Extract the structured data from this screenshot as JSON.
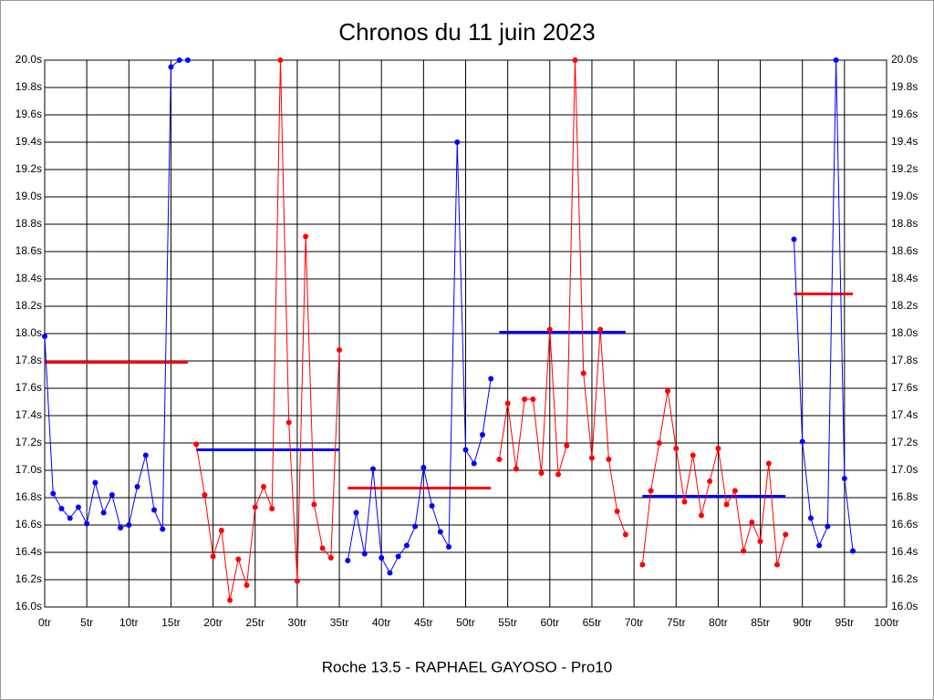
{
  "chart_data": {
    "type": "line",
    "title": "Chronos du 11 juin 2023",
    "xlabel": "Roche 13.5 - RAPHAEL GAYOSO - Pro10",
    "xlim": [
      0,
      100
    ],
    "ylim": [
      16.0,
      20.0
    ],
    "grid": true,
    "xticks": [
      {
        "value": 0,
        "label": "0tr"
      },
      {
        "value": 5,
        "label": "5tr"
      },
      {
        "value": 10,
        "label": "10tr"
      },
      {
        "value": 15,
        "label": "15tr"
      },
      {
        "value": 20,
        "label": "20tr"
      },
      {
        "value": 25,
        "label": "25tr"
      },
      {
        "value": 30,
        "label": "30tr"
      },
      {
        "value": 35,
        "label": "35tr"
      },
      {
        "value": 40,
        "label": "40tr"
      },
      {
        "value": 45,
        "label": "45tr"
      },
      {
        "value": 50,
        "label": "50tr"
      },
      {
        "value": 55,
        "label": "55tr"
      },
      {
        "value": 60,
        "label": "60tr"
      },
      {
        "value": 65,
        "label": "65tr"
      },
      {
        "value": 70,
        "label": "70tr"
      },
      {
        "value": 75,
        "label": "75tr"
      },
      {
        "value": 80,
        "label": "80tr"
      },
      {
        "value": 85,
        "label": "85tr"
      },
      {
        "value": 90,
        "label": "90tr"
      },
      {
        "value": 95,
        "label": "95tr"
      },
      {
        "value": 100,
        "label": "100tr"
      }
    ],
    "yticks": [
      {
        "value": 16.0,
        "label": "16.0s"
      },
      {
        "value": 16.2,
        "label": "16.2s"
      },
      {
        "value": 16.4,
        "label": "16.4s"
      },
      {
        "value": 16.6,
        "label": "16.6s"
      },
      {
        "value": 16.8,
        "label": "16.8s"
      },
      {
        "value": 17.0,
        "label": "17.0s"
      },
      {
        "value": 17.2,
        "label": "17.2s"
      },
      {
        "value": 17.4,
        "label": "17.4s"
      },
      {
        "value": 17.6,
        "label": "17.6s"
      },
      {
        "value": 17.8,
        "label": "17.8s"
      },
      {
        "value": 18.0,
        "label": "18.0s"
      },
      {
        "value": 18.2,
        "label": "18.2s"
      },
      {
        "value": 18.4,
        "label": "18.4s"
      },
      {
        "value": 18.6,
        "label": "18.6s"
      },
      {
        "value": 18.8,
        "label": "18.8s"
      },
      {
        "value": 19.0,
        "label": "19.0s"
      },
      {
        "value": 19.2,
        "label": "19.2s"
      },
      {
        "value": 19.4,
        "label": "19.4s"
      },
      {
        "value": 19.6,
        "label": "19.6s"
      },
      {
        "value": 19.8,
        "label": "19.8s"
      },
      {
        "value": 20.0,
        "label": "20.0s"
      }
    ],
    "series": [
      {
        "color": "#0000ff",
        "x": [
          0,
          1,
          2,
          3,
          4,
          5,
          6,
          7,
          8,
          9,
          10,
          11,
          12,
          13,
          14,
          15,
          16,
          17
        ],
        "values": [
          17.98,
          16.83,
          16.72,
          16.65,
          16.73,
          16.61,
          16.91,
          16.69,
          16.82,
          16.58,
          16.6,
          16.88,
          17.11,
          16.71,
          16.57,
          19.95,
          20.0,
          20.0
        ]
      },
      {
        "color": "#ff0000",
        "x": [
          18,
          19,
          20,
          21,
          22,
          23,
          24,
          25,
          26,
          27,
          28,
          29,
          30,
          31,
          32,
          33,
          34,
          35
        ],
        "values": [
          17.19,
          16.82,
          16.37,
          16.56,
          16.05,
          16.35,
          16.16,
          16.73,
          16.88,
          16.72,
          20.0,
          17.35,
          16.19,
          18.71,
          16.75,
          16.43,
          16.36,
          17.88
        ]
      },
      {
        "color": "#0000ff",
        "x": [
          36,
          37,
          38,
          39,
          40,
          41,
          42,
          43,
          44,
          45,
          46,
          47,
          48,
          49,
          50,
          51,
          52,
          53
        ],
        "values": [
          16.34,
          16.69,
          16.39,
          17.01,
          16.36,
          16.25,
          16.37,
          16.45,
          16.59,
          17.02,
          16.74,
          16.55,
          16.44,
          19.4,
          17.15,
          17.05,
          17.26,
          17.67
        ]
      },
      {
        "color": "#ff0000",
        "x": [
          54,
          55,
          56,
          57,
          58,
          59,
          60,
          61,
          62,
          63,
          64,
          65,
          66,
          67,
          68,
          69
        ],
        "values": [
          17.08,
          17.49,
          17.01,
          17.52,
          17.52,
          16.98,
          18.03,
          16.97,
          17.18,
          20.0,
          17.71,
          17.09,
          18.03,
          17.08,
          16.7,
          16.53
        ]
      },
      {
        "color": "#ff0000",
        "x": [
          71,
          72,
          73,
          74,
          75,
          76,
          77,
          78,
          79,
          80,
          81,
          82,
          83,
          84,
          85,
          86,
          87,
          88
        ],
        "values": [
          16.31,
          16.85,
          17.2,
          17.58,
          17.16,
          16.77,
          17.11,
          16.67,
          16.92,
          17.16,
          16.75,
          16.85,
          16.41,
          16.62,
          16.48,
          17.05,
          16.31,
          16.53
        ]
      },
      {
        "color": "#0000ff",
        "x": [
          89,
          90,
          91,
          92,
          93,
          94,
          95,
          96
        ],
        "values": [
          18.69,
          17.21,
          16.65,
          16.45,
          16.59,
          20.0,
          16.94,
          16.41
        ]
      }
    ],
    "reference_lines": [
      {
        "color": "#ff0000",
        "x": [
          0,
          17
        ],
        "value": 17.79
      },
      {
        "color": "#0000ff",
        "x": [
          18,
          35
        ],
        "value": 17.15
      },
      {
        "color": "#ff0000",
        "x": [
          36,
          53
        ],
        "value": 16.87
      },
      {
        "color": "#0000ff",
        "x": [
          54,
          69
        ],
        "value": 18.01
      },
      {
        "color": "#0000ff",
        "x": [
          71,
          88
        ],
        "value": 16.81
      },
      {
        "color": "#ff0000",
        "x": [
          89,
          96
        ],
        "value": 18.29
      }
    ]
  }
}
